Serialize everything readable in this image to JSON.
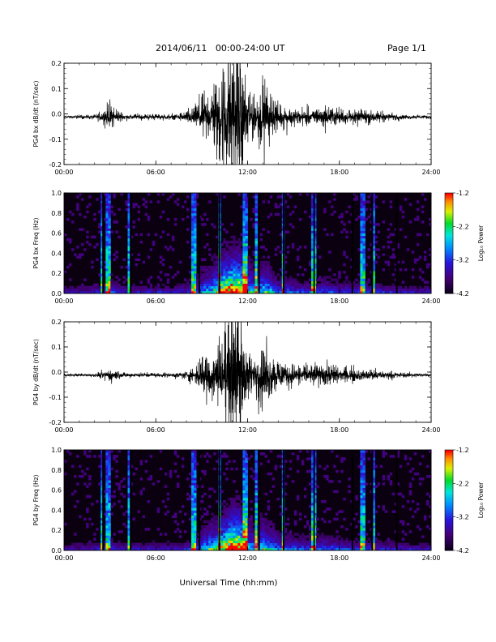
{
  "header": {
    "title": "2014/06/11   00:00-24:00 UT",
    "page": "Page 1/1"
  },
  "xlabel_bottom": "Universal Time (hh:mm)",
  "time_ticks": [
    "00:00",
    "06:00",
    "12:00",
    "18:00",
    "24:00"
  ],
  "chart_data": [
    {
      "type": "line",
      "ylabel": "PG4 bx dB/dt (nT/sec)",
      "xlim": [
        0,
        24
      ],
      "ylim": [
        -0.2,
        0.2
      ],
      "yticks": [
        "-0.2",
        "-0.1",
        "0.0",
        "0.1",
        "0.2"
      ],
      "envelope_hours": [
        0,
        1,
        2,
        2.5,
        3,
        3.5,
        4,
        5,
        6,
        7,
        7.5,
        8,
        8.5,
        9,
        9.5,
        10,
        10.5,
        11,
        11.5,
        12,
        12.5,
        13,
        13.5,
        14,
        15,
        16,
        17,
        18,
        19,
        20,
        21,
        22,
        23,
        24
      ],
      "envelope_amplitude": [
        0.006,
        0.007,
        0.009,
        0.02,
        0.06,
        0.025,
        0.012,
        0.012,
        0.012,
        0.012,
        0.015,
        0.025,
        0.04,
        0.09,
        0.1,
        0.16,
        0.25,
        0.3,
        0.3,
        0.14,
        0.08,
        0.14,
        0.1,
        0.06,
        0.04,
        0.035,
        0.05,
        0.03,
        0.03,
        0.03,
        0.018,
        0.012,
        0.008,
        0.007
      ]
    },
    {
      "type": "heatmap",
      "ylabel": "PG4 bx Freq (Hz)",
      "xlim": [
        0,
        24
      ],
      "ylim": [
        0,
        1.0
      ],
      "yticks": [
        "0.0",
        "0.2",
        "0.4",
        "0.6",
        "0.8",
        "1.0"
      ],
      "colorbar": {
        "label": "Log₁₀ Power",
        "min": -4.2,
        "max": -1.2,
        "ticks": [
          "-1.2",
          "-2.2",
          "-3.2",
          "-4.2"
        ]
      },
      "bright_bands_hours": [
        2.5,
        2.8,
        3.0,
        4.2,
        8.5,
        10.2,
        11.8,
        12.6,
        14.3,
        16.3,
        19.5,
        20.2
      ],
      "data_gaps_hours": [
        2.5,
        4.3,
        8.8,
        10.1,
        12.7,
        14.3,
        16.3,
        18.8,
        20.1,
        21.7
      ]
    },
    {
      "type": "line",
      "ylabel": "PG4 by dB/dt (nT/sec)",
      "xlim": [
        0,
        24
      ],
      "ylim": [
        -0.2,
        0.2
      ],
      "yticks": [
        "-0.2",
        "-0.1",
        "0.0",
        "0.1",
        "0.2"
      ],
      "envelope_hours": [
        0,
        1,
        2,
        2.5,
        3,
        3.5,
        4,
        5,
        6,
        7,
        7.5,
        8,
        8.5,
        9,
        9.5,
        10,
        10.5,
        11,
        11.5,
        12,
        12.5,
        13,
        13.5,
        14,
        15,
        16,
        17,
        18,
        19,
        20,
        21,
        22,
        23,
        24
      ],
      "envelope_amplitude": [
        0.005,
        0.006,
        0.008,
        0.015,
        0.03,
        0.018,
        0.01,
        0.01,
        0.01,
        0.01,
        0.012,
        0.018,
        0.03,
        0.08,
        0.12,
        0.14,
        0.22,
        0.3,
        0.3,
        0.12,
        0.08,
        0.14,
        0.1,
        0.06,
        0.05,
        0.04,
        0.05,
        0.035,
        0.03,
        0.025,
        0.018,
        0.012,
        0.008,
        0.006
      ]
    },
    {
      "type": "heatmap",
      "ylabel": "PG4 by Freq (Hz)",
      "xlim": [
        0,
        24
      ],
      "ylim": [
        0,
        1.0
      ],
      "yticks": [
        "0.0",
        "0.2",
        "0.4",
        "0.6",
        "0.8",
        "1.0"
      ],
      "colorbar": {
        "label": "Log₁₀ Power",
        "min": -4.2,
        "max": -1.2,
        "ticks": [
          "-1.2",
          "-2.2",
          "-3.2",
          "-4.2"
        ]
      },
      "bright_bands_hours": [
        2.5,
        2.8,
        3.0,
        4.2,
        8.5,
        10.2,
        11.8,
        12.6,
        14.3,
        16.3,
        19.5,
        20.2
      ],
      "data_gaps_hours": [
        2.5,
        4.3,
        8.8,
        10.1,
        12.7,
        14.3,
        16.3,
        18.8,
        20.1,
        21.7
      ]
    }
  ]
}
